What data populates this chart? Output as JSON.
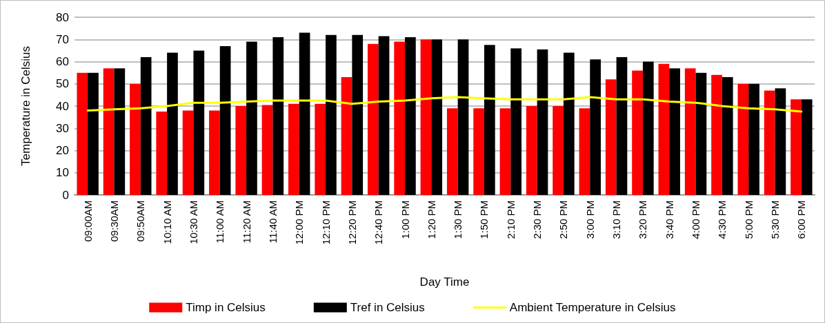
{
  "chart_data": {
    "type": "bar",
    "xlabel": "Day Time",
    "ylabel": "Temperature in Celsius",
    "categories": [
      "09:00AM",
      "09:30AM",
      "09:50AM",
      "10:10 AM",
      "10:30 AM",
      "11:00 AM",
      "11:20 AM",
      "11:40 AM",
      "12:00 PM",
      "12:10 PM",
      "12:20 PM",
      "12:40 PM",
      "1:00 PM",
      "1:20 PM",
      "1:30 PM",
      "1:50 PM",
      "2:10 PM",
      "2:30 PM",
      "2:50 PM",
      "3:00 PM",
      "3:10 PM",
      "3:20 PM",
      "3:40 PM",
      "4:00 PM",
      "4:30 PM",
      "5:00 PM",
      "5:30 PM",
      "6:00 PM"
    ],
    "series": [
      {
        "name": "Timp in Celsius",
        "color": "#ff0000",
        "values": [
          55,
          57,
          50,
          37.5,
          38,
          38,
          40,
          40.5,
          41,
          41,
          53,
          68,
          69,
          70,
          39,
          39,
          39,
          40,
          40,
          39,
          52,
          56,
          59,
          57,
          54,
          50,
          47,
          43
        ]
      },
      {
        "name": "Tref in Celsius",
        "color": "#000000",
        "values": [
          55,
          57,
          62,
          64,
          65,
          67,
          69,
          71,
          73,
          72,
          72,
          71.5,
          71,
          70,
          70,
          67.5,
          66,
          65.5,
          64,
          61,
          62,
          60,
          57,
          55,
          53,
          50,
          48,
          43
        ]
      },
      {
        "name": "Ambient Temperature in Celsius",
        "type": "line",
        "color": "#ffff00",
        "values": [
          38,
          38.5,
          39,
          40,
          41.5,
          41.5,
          42,
          42.5,
          42.5,
          42.5,
          41,
          42,
          42.5,
          43.5,
          44,
          43.5,
          43,
          43,
          43,
          44,
          43,
          43,
          42,
          41.5,
          40,
          39,
          38.5,
          37.5
        ]
      }
    ],
    "ylim": [
      0,
      80
    ],
    "yticks": [
      0,
      10,
      20,
      30,
      40,
      50,
      60,
      70,
      80
    ],
    "grid": "y",
    "legend": "bottom",
    "marker": "none"
  }
}
